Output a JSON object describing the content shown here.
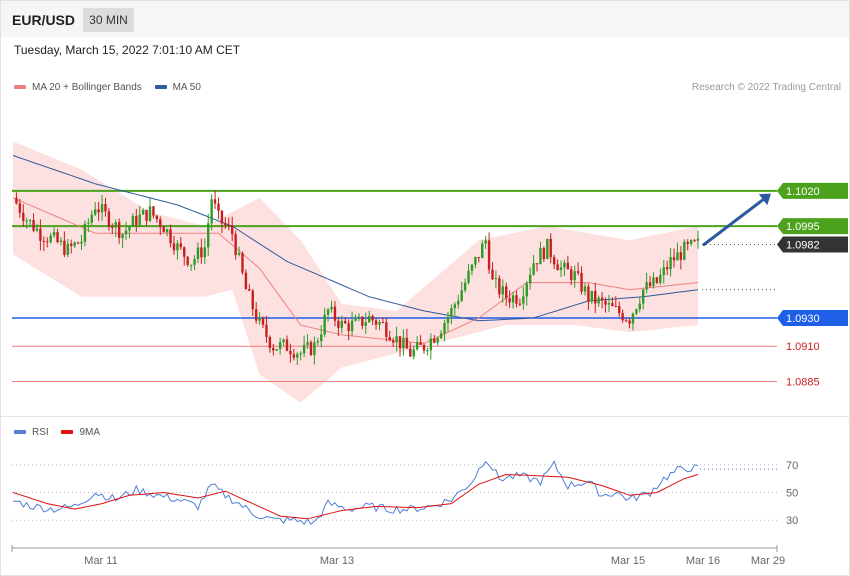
{
  "header": {
    "symbol": "EUR/USD",
    "timeframe": "30 MIN"
  },
  "timestamp": "Tuesday, March 15, 2022 7:01:10 AM CET",
  "credit": "Research © 2022 Trading Central",
  "legend_main": [
    {
      "label": "MA 20 + Bollinger Bands",
      "color": "#f08080"
    },
    {
      "label": "MA 50",
      "color": "#2f5a9e"
    }
  ],
  "legend_rsi": [
    {
      "label": "RSI",
      "color": "#4f7fd6"
    },
    {
      "label": "9MA",
      "color": "#e01010"
    }
  ],
  "colors": {
    "up": "#2f9b27",
    "down": "#c61f1f",
    "resistance": "#4ca21c",
    "support": "#1f5ee6",
    "target_line": "#f07b7b",
    "arrow": "#2c5aa0",
    "band": "#fde0e0",
    "rsi": "#4f7fd6",
    "rsi_ma": "#e01010"
  },
  "chart_data": [
    {
      "type": "candlestick",
      "ylim": [
        1.0862,
        1.1085
      ],
      "x_tick_labels": [
        "Mar 11",
        "Mar 13",
        "Mar 15",
        "Mar 16",
        "Mar 29"
      ],
      "last_price": 1.0982,
      "levels": [
        {
          "value": 1.102,
          "label": "1.1020",
          "kind": "resistance"
        },
        {
          "value": 1.0995,
          "label": "1.0995",
          "kind": "resistance"
        },
        {
          "value": 1.0982,
          "label": "1.0982",
          "kind": "last"
        },
        {
          "value": 1.093,
          "label": "1.0930",
          "kind": "pivot"
        },
        {
          "value": 1.091,
          "label": "1.0910",
          "kind": "target"
        },
        {
          "value": 1.0885,
          "label": "1.0885",
          "kind": "target"
        }
      ],
      "forecast": {
        "from": 1.0982,
        "to": 1.1018,
        "direction": "up"
      },
      "anchors": [
        [
          0,
          1.1015
        ],
        [
          4,
          1.1
        ],
        [
          8,
          1.099
        ],
        [
          12,
          1.0985
        ],
        [
          16,
          1.0978
        ],
        [
          20,
          1.0985
        ],
        [
          24,
          1.101
        ],
        [
          28,
          1.1
        ],
        [
          32,
          1.099
        ],
        [
          36,
          1.1
        ],
        [
          40,
          1.1005
        ],
        [
          44,
          1.0995
        ],
        [
          48,
          1.098
        ],
        [
          52,
          1.097
        ],
        [
          56,
          1.098
        ],
        [
          58,
          1.1015
        ],
        [
          60,
          1.1
        ],
        [
          64,
          1.099
        ],
        [
          68,
          1.095
        ],
        [
          72,
          1.0925
        ],
        [
          76,
          1.091
        ],
        [
          80,
          1.091
        ],
        [
          84,
          1.0905
        ],
        [
          88,
          1.091
        ],
        [
          92,
          1.0935
        ],
        [
          96,
          1.0925
        ],
        [
          100,
          1.0925
        ],
        [
          104,
          1.093
        ],
        [
          108,
          1.0925
        ],
        [
          112,
          1.0915
        ],
        [
          116,
          1.0905
        ],
        [
          120,
          1.091
        ],
        [
          124,
          1.092
        ],
        [
          128,
          1.0935
        ],
        [
          132,
          1.0955
        ],
        [
          136,
          1.0975
        ],
        [
          138,
          1.0985
        ],
        [
          140,
          1.0955
        ],
        [
          144,
          1.0945
        ],
        [
          148,
          1.0945
        ],
        [
          152,
          1.097
        ],
        [
          156,
          1.098
        ],
        [
          160,
          1.0965
        ],
        [
          164,
          1.096
        ],
        [
          168,
          1.0945
        ],
        [
          172,
          1.094
        ],
        [
          176,
          1.0935
        ],
        [
          180,
          1.093
        ],
        [
          184,
          1.095
        ],
        [
          188,
          1.0955
        ],
        [
          192,
          1.097
        ],
        [
          196,
          1.0978
        ],
        [
          200,
          1.0982
        ]
      ],
      "bollinger_upper": [
        [
          0,
          1.1055
        ],
        [
          20,
          1.1035
        ],
        [
          40,
          1.1005
        ],
        [
          56,
          1.0995
        ],
        [
          72,
          1.1015
        ],
        [
          84,
          1.0985
        ],
        [
          96,
          1.094
        ],
        [
          112,
          1.0935
        ],
        [
          136,
          1.0985
        ],
        [
          156,
          1.0995
        ],
        [
          180,
          1.0985
        ],
        [
          200,
          1.0995
        ]
      ],
      "bollinger_lower": [
        [
          0,
          1.0975
        ],
        [
          20,
          1.0945
        ],
        [
          40,
          1.0945
        ],
        [
          56,
          1.0945
        ],
        [
          64,
          1.095
        ],
        [
          72,
          1.089
        ],
        [
          84,
          1.087
        ],
        [
          96,
          1.0895
        ],
        [
          112,
          1.0905
        ],
        [
          128,
          1.0915
        ],
        [
          144,
          1.0925
        ],
        [
          164,
          1.0925
        ],
        [
          180,
          1.092
        ],
        [
          200,
          1.0925
        ]
      ],
      "ma20": [
        [
          0,
          1.1015
        ],
        [
          24,
          1.099
        ],
        [
          48,
          1.099
        ],
        [
          60,
          1.099
        ],
        [
          72,
          1.0965
        ],
        [
          84,
          1.0925
        ],
        [
          96,
          1.0918
        ],
        [
          120,
          1.0912
        ],
        [
          136,
          1.093
        ],
        [
          150,
          1.0955
        ],
        [
          168,
          1.0955
        ],
        [
          180,
          1.095
        ],
        [
          200,
          1.0955
        ]
      ],
      "ma50": [
        [
          0,
          1.1045
        ],
        [
          24,
          1.1025
        ],
        [
          48,
          1.101
        ],
        [
          64,
          1.0995
        ],
        [
          80,
          1.097
        ],
        [
          104,
          1.0945
        ],
        [
          120,
          1.0935
        ],
        [
          136,
          1.0928
        ],
        [
          152,
          1.093
        ],
        [
          168,
          1.0942
        ],
        [
          184,
          1.0945
        ],
        [
          200,
          1.095
        ]
      ]
    },
    {
      "type": "line",
      "ylim": [
        15,
        85
      ],
      "y_ticks": [
        70,
        50,
        30
      ],
      "series": [
        {
          "name": "RSI",
          "values": [
            [
              0,
              44
            ],
            [
              6,
              40
            ],
            [
              12,
              38
            ],
            [
              18,
              40
            ],
            [
              24,
              50
            ],
            [
              30,
              45
            ],
            [
              36,
              52
            ],
            [
              42,
              48
            ],
            [
              48,
              45
            ],
            [
              54,
              40
            ],
            [
              58,
              55
            ],
            [
              62,
              48
            ],
            [
              66,
              42
            ],
            [
              70,
              35
            ],
            [
              76,
              30
            ],
            [
              82,
              30
            ],
            [
              88,
              28
            ],
            [
              92,
              42
            ],
            [
              98,
              38
            ],
            [
              104,
              40
            ],
            [
              110,
              38
            ],
            [
              116,
              38
            ],
            [
              122,
              40
            ],
            [
              128,
              45
            ],
            [
              134,
              58
            ],
            [
              138,
              75
            ],
            [
              142,
              60
            ],
            [
              148,
              62
            ],
            [
              154,
              58
            ],
            [
              158,
              70
            ],
            [
              162,
              55
            ],
            [
              168,
              58
            ],
            [
              172,
              48
            ],
            [
              176,
              50
            ],
            [
              180,
              45
            ],
            [
              186,
              50
            ],
            [
              190,
              60
            ],
            [
              194,
              66
            ],
            [
              198,
              68
            ],
            [
              200,
              67
            ]
          ]
        },
        {
          "name": "9MA",
          "values": [
            [
              0,
              50
            ],
            [
              10,
              42
            ],
            [
              18,
              38
            ],
            [
              26,
              42
            ],
            [
              34,
              48
            ],
            [
              44,
              50
            ],
            [
              54,
              46
            ],
            [
              62,
              51
            ],
            [
              70,
              42
            ],
            [
              78,
              33
            ],
            [
              86,
              31
            ],
            [
              96,
              37
            ],
            [
              106,
              40
            ],
            [
              118,
              39
            ],
            [
              128,
              42
            ],
            [
              136,
              56
            ],
            [
              144,
              63
            ],
            [
              154,
              62
            ],
            [
              162,
              61
            ],
            [
              172,
              55
            ],
            [
              180,
              48
            ],
            [
              188,
              50
            ],
            [
              196,
              60
            ],
            [
              200,
              63
            ]
          ]
        }
      ]
    }
  ]
}
